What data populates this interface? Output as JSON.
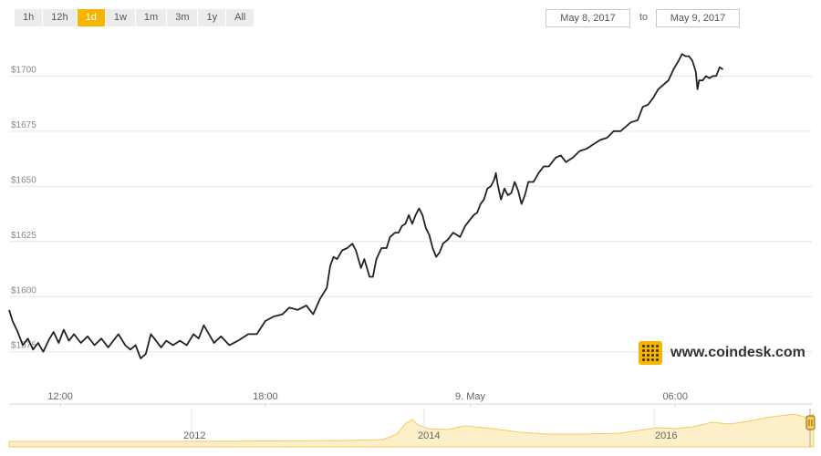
{
  "controls": {
    "range_buttons": [
      "1h",
      "12h",
      "1d",
      "1w",
      "1m",
      "3m",
      "1y",
      "All"
    ],
    "active_range": "1d",
    "from_date": "May 8, 2017",
    "to_label": "to",
    "to_date": "May 9, 2017"
  },
  "brand": {
    "text": "www.coindesk.com"
  },
  "colors": {
    "line": "#222222",
    "accent": "#f5b500",
    "navigator_fill": "#fdf0c8",
    "navigator_line": "#f5c860"
  },
  "chart_data": {
    "type": "line",
    "title": "",
    "xlabel": "",
    "ylabel": "",
    "x_unit": "hours since 10:30, 8 May 2017",
    "x_ticks": [
      {
        "x": 1.5,
        "label": "12:00"
      },
      {
        "x": 7.5,
        "label": "18:00"
      },
      {
        "x": 13.5,
        "label": "9. May"
      },
      {
        "x": 19.5,
        "label": "06:00"
      }
    ],
    "xlim": [
      0,
      23.5
    ],
    "ylim": [
      1560,
      1720
    ],
    "y_ticks": [
      {
        "y": 1575,
        "label": "$1575"
      },
      {
        "y": 1600,
        "label": "$1600"
      },
      {
        "y": 1625,
        "label": "$1625"
      },
      {
        "y": 1650,
        "label": "$1650"
      },
      {
        "y": 1675,
        "label": "$1675"
      },
      {
        "y": 1700,
        "label": "$1700"
      }
    ],
    "grid": true,
    "series": [
      {
        "values": [
          [
            0.0,
            1594
          ],
          [
            0.1,
            1589
          ],
          [
            0.25,
            1584
          ],
          [
            0.4,
            1578
          ],
          [
            0.55,
            1581
          ],
          [
            0.7,
            1576
          ],
          [
            0.85,
            1579
          ],
          [
            1.0,
            1575
          ],
          [
            1.15,
            1580
          ],
          [
            1.3,
            1584
          ],
          [
            1.45,
            1579
          ],
          [
            1.6,
            1585
          ],
          [
            1.75,
            1580
          ],
          [
            1.9,
            1583
          ],
          [
            2.1,
            1579
          ],
          [
            2.3,
            1582
          ],
          [
            2.5,
            1578
          ],
          [
            2.7,
            1581
          ],
          [
            2.9,
            1577
          ],
          [
            3.05,
            1580
          ],
          [
            3.2,
            1583
          ],
          [
            3.4,
            1578
          ],
          [
            3.55,
            1576
          ],
          [
            3.7,
            1578
          ],
          [
            3.85,
            1572
          ],
          [
            4.0,
            1574
          ],
          [
            4.15,
            1583
          ],
          [
            4.3,
            1580
          ],
          [
            4.45,
            1577
          ],
          [
            4.6,
            1580
          ],
          [
            4.8,
            1578
          ],
          [
            5.0,
            1580
          ],
          [
            5.2,
            1578
          ],
          [
            5.4,
            1583
          ],
          [
            5.55,
            1581
          ],
          [
            5.7,
            1587
          ],
          [
            5.85,
            1583
          ],
          [
            6.0,
            1579
          ],
          [
            6.2,
            1582
          ],
          [
            6.45,
            1578
          ],
          [
            6.7,
            1580
          ],
          [
            7.0,
            1583
          ],
          [
            7.25,
            1583
          ],
          [
            7.5,
            1589
          ],
          [
            7.75,
            1591
          ],
          [
            8.0,
            1592
          ],
          [
            8.2,
            1595
          ],
          [
            8.45,
            1594
          ],
          [
            8.7,
            1596
          ],
          [
            8.9,
            1592
          ],
          [
            9.1,
            1599
          ],
          [
            9.3,
            1604
          ],
          [
            9.4,
            1614
          ],
          [
            9.5,
            1618
          ],
          [
            9.6,
            1617
          ],
          [
            9.75,
            1621
          ],
          [
            9.9,
            1622
          ],
          [
            10.05,
            1624
          ],
          [
            10.15,
            1621
          ],
          [
            10.3,
            1613
          ],
          [
            10.4,
            1617
          ],
          [
            10.55,
            1609
          ],
          [
            10.65,
            1609
          ],
          [
            10.75,
            1617
          ],
          [
            10.9,
            1622
          ],
          [
            11.05,
            1622
          ],
          [
            11.15,
            1627
          ],
          [
            11.3,
            1629
          ],
          [
            11.4,
            1629
          ],
          [
            11.5,
            1632
          ],
          [
            11.6,
            1633
          ],
          [
            11.7,
            1637
          ],
          [
            11.8,
            1633
          ],
          [
            11.9,
            1637
          ],
          [
            12.0,
            1640
          ],
          [
            12.1,
            1637
          ],
          [
            12.2,
            1631
          ],
          [
            12.3,
            1628
          ],
          [
            12.4,
            1622
          ],
          [
            12.5,
            1618
          ],
          [
            12.6,
            1620
          ],
          [
            12.7,
            1624
          ],
          [
            12.85,
            1626
          ],
          [
            13.0,
            1629
          ],
          [
            13.2,
            1627
          ],
          [
            13.35,
            1632
          ],
          [
            13.5,
            1635
          ],
          [
            13.6,
            1637
          ],
          [
            13.7,
            1638
          ],
          [
            13.8,
            1642
          ],
          [
            13.9,
            1644
          ],
          [
            14.0,
            1649
          ],
          [
            14.1,
            1650
          ],
          [
            14.2,
            1653
          ],
          [
            14.25,
            1656
          ],
          [
            14.3,
            1651
          ],
          [
            14.4,
            1644
          ],
          [
            14.5,
            1649
          ],
          [
            14.6,
            1646
          ],
          [
            14.7,
            1647
          ],
          [
            14.8,
            1652
          ],
          [
            14.9,
            1648
          ],
          [
            15.0,
            1642
          ],
          [
            15.1,
            1646
          ],
          [
            15.2,
            1652
          ],
          [
            15.35,
            1652
          ],
          [
            15.5,
            1656
          ],
          [
            15.65,
            1659
          ],
          [
            15.8,
            1659
          ],
          [
            15.9,
            1661
          ],
          [
            16.0,
            1663
          ],
          [
            16.15,
            1664
          ],
          [
            16.3,
            1661
          ],
          [
            16.5,
            1663
          ],
          [
            16.7,
            1666
          ],
          [
            16.9,
            1667
          ],
          [
            17.1,
            1669
          ],
          [
            17.3,
            1671
          ],
          [
            17.5,
            1672
          ],
          [
            17.7,
            1675
          ],
          [
            17.9,
            1675
          ],
          [
            18.05,
            1677
          ],
          [
            18.2,
            1679
          ],
          [
            18.4,
            1680
          ],
          [
            18.55,
            1686
          ],
          [
            18.7,
            1687
          ],
          [
            18.85,
            1690
          ],
          [
            19.0,
            1694
          ],
          [
            19.15,
            1696
          ],
          [
            19.3,
            1698
          ],
          [
            19.45,
            1703
          ],
          [
            19.6,
            1707
          ],
          [
            19.7,
            1710
          ],
          [
            19.8,
            1709
          ],
          [
            19.9,
            1709
          ],
          [
            20.0,
            1707
          ],
          [
            20.1,
            1702
          ],
          [
            20.15,
            1694
          ],
          [
            20.2,
            1698
          ],
          [
            20.3,
            1698
          ],
          [
            20.4,
            1700
          ],
          [
            20.5,
            1699
          ],
          [
            20.6,
            1700
          ],
          [
            20.7,
            1700
          ],
          [
            20.8,
            1704
          ],
          [
            20.9,
            1703
          ]
        ]
      }
    ]
  },
  "navigator": {
    "labels": [
      "2012",
      "2014",
      "2016"
    ]
  }
}
